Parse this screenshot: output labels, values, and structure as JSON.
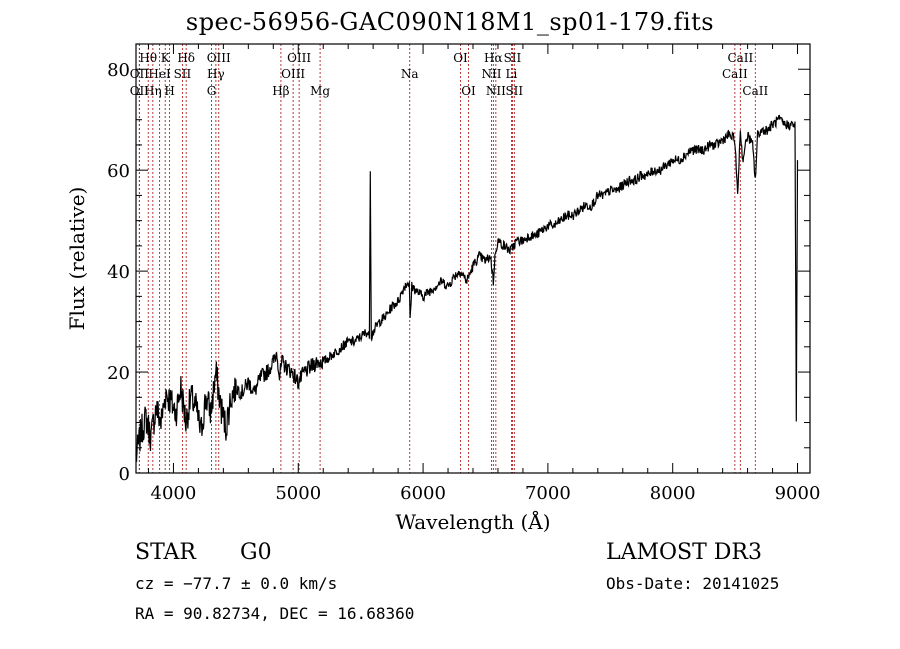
{
  "chart_data": {
    "type": "line",
    "title": "spec-56956-GAC090N18M1_sp01-179.fits",
    "xlabel": "Wavelength (Å)",
    "ylabel": "Flux (relative)",
    "xlim": [
      3700,
      9100
    ],
    "ylim": [
      0,
      85
    ],
    "xticks": [
      4000,
      5000,
      6000,
      7000,
      8000,
      9000
    ],
    "yticks": [
      0,
      20,
      40,
      60,
      80
    ],
    "x_tick_labels": [
      "4000",
      "5000",
      "6000",
      "7000",
      "8000",
      "9000"
    ],
    "y_tick_labels": [
      "0",
      "20",
      "40",
      "60",
      "80"
    ],
    "series": [
      {
        "name": "flux",
        "x": [
          3700,
          3740,
          3780,
          3820,
          3860,
          3900,
          3940,
          3980,
          4020,
          4060,
          4100,
          4140,
          4180,
          4220,
          4260,
          4300,
          4340,
          4380,
          4420,
          4460,
          4500,
          4550,
          4600,
          4650,
          4700,
          4750,
          4800,
          4830,
          4850,
          4870,
          4900,
          4950,
          5000,
          5050,
          5100,
          5150,
          5200,
          5250,
          5300,
          5350,
          5400,
          5450,
          5500,
          5550,
          5570,
          5577,
          5585,
          5600,
          5650,
          5700,
          5750,
          5800,
          5850,
          5890,
          5896,
          5910,
          5950,
          6000,
          6050,
          6100,
          6150,
          6200,
          6250,
          6300,
          6350,
          6400,
          6450,
          6500,
          6540,
          6563,
          6580,
          6600,
          6650,
          6700,
          6750,
          6800,
          6850,
          6900,
          6950,
          7000,
          7050,
          7100,
          7150,
          7200,
          7250,
          7300,
          7350,
          7400,
          7450,
          7500,
          7550,
          7600,
          7650,
          7700,
          7750,
          7800,
          7850,
          7900,
          7950,
          8000,
          8050,
          8100,
          8150,
          8200,
          8250,
          8300,
          8350,
          8400,
          8450,
          8498,
          8520,
          8542,
          8560,
          8600,
          8640,
          8662,
          8680,
          8720,
          8760,
          8800,
          8850,
          8900,
          8950,
          8980,
          8990,
          9000
        ],
        "y": [
          3,
          8,
          11,
          7,
          13,
          10,
          16,
          14,
          12,
          17,
          10,
          15,
          13,
          8,
          15,
          12,
          20,
          13,
          9,
          15,
          17,
          16,
          18,
          16,
          19,
          20,
          22,
          24,
          19,
          22,
          21,
          20,
          18,
          20,
          21,
          22,
          22,
          23,
          24,
          25,
          26,
          26,
          27,
          28,
          27,
          60,
          27,
          28,
          30,
          31,
          33,
          34,
          37,
          38,
          30,
          37,
          36,
          35,
          36,
          37,
          38,
          37,
          39,
          40,
          38,
          41,
          43,
          42,
          43,
          38,
          44,
          46,
          45,
          44,
          46,
          46,
          47,
          47,
          48,
          49,
          49,
          50,
          51,
          51,
          52,
          53,
          53,
          55,
          55,
          56,
          56,
          57,
          58,
          58,
          59,
          59,
          60,
          60,
          61,
          62,
          62,
          63,
          64,
          64,
          64,
          65,
          65,
          66,
          67,
          66,
          55,
          68,
          62,
          67,
          65,
          58,
          67,
          68,
          68,
          69,
          70,
          69,
          69,
          69,
          10,
          62
        ]
      }
    ],
    "line_markers": [
      {
        "label": "Hθ",
        "wavelength": 3798,
        "row": 1
      },
      {
        "label": "OII",
        "wavelength": 3727,
        "row": 2
      },
      {
        "label": "HeI",
        "wavelength": 3889,
        "row": 2
      },
      {
        "label": "OII",
        "wavelength": 3727,
        "row": 3
      },
      {
        "label": "Hη",
        "wavelength": 3835,
        "row": 3
      },
      {
        "label": "K",
        "wavelength": 3934,
        "row": 1
      },
      {
        "label": "H",
        "wavelength": 3969,
        "row": 3
      },
      {
        "label": "Hδ",
        "wavelength": 4102,
        "row": 1
      },
      {
        "label": "SII",
        "wavelength": 4072,
        "row": 2
      },
      {
        "label": "OIII",
        "wavelength": 4363,
        "row": 1
      },
      {
        "label": "Hγ",
        "wavelength": 4340,
        "row": 2
      },
      {
        "label": "G",
        "wavelength": 4305,
        "row": 3
      },
      {
        "label": "OIII",
        "wavelength": 5007,
        "row": 1
      },
      {
        "label": "OIII",
        "wavelength": 4959,
        "row": 2
      },
      {
        "label": "Hβ",
        "wavelength": 4861,
        "row": 3
      },
      {
        "label": "Mg",
        "wavelength": 5175,
        "row": 3
      },
      {
        "label": "Na",
        "wavelength": 5893,
        "row": 2
      },
      {
        "label": "OI",
        "wavelength": 6300,
        "row": 1
      },
      {
        "label": "OI",
        "wavelength": 6364,
        "row": 3
      },
      {
        "label": "Hα",
        "wavelength": 6563,
        "row": 1
      },
      {
        "label": "NII",
        "wavelength": 6548,
        "row": 2
      },
      {
        "label": "NII",
        "wavelength": 6583,
        "row": 3
      },
      {
        "label": "SII",
        "wavelength": 6716,
        "row": 1
      },
      {
        "label": "SII",
        "wavelength": 6731,
        "row": 3
      },
      {
        "label": "Li",
        "wavelength": 6708,
        "row": 2
      },
      {
        "label": "CaII",
        "wavelength": 8542,
        "row": 1
      },
      {
        "label": "CaII",
        "wavelength": 8498,
        "row": 2
      },
      {
        "label": "CaII",
        "wavelength": 8662,
        "row": 3
      }
    ],
    "colors": {
      "marker_line": "#b22222",
      "spectrum": "#000000"
    }
  },
  "info": {
    "classification": "STAR",
    "subclass": "G0",
    "survey": "LAMOST DR3",
    "redshift": "cz = −77.7 ± 0.0 km/s",
    "obs_date": "Obs-Date: 20141025",
    "coords": "RA =  90.82734, DEC =  16.68360"
  }
}
